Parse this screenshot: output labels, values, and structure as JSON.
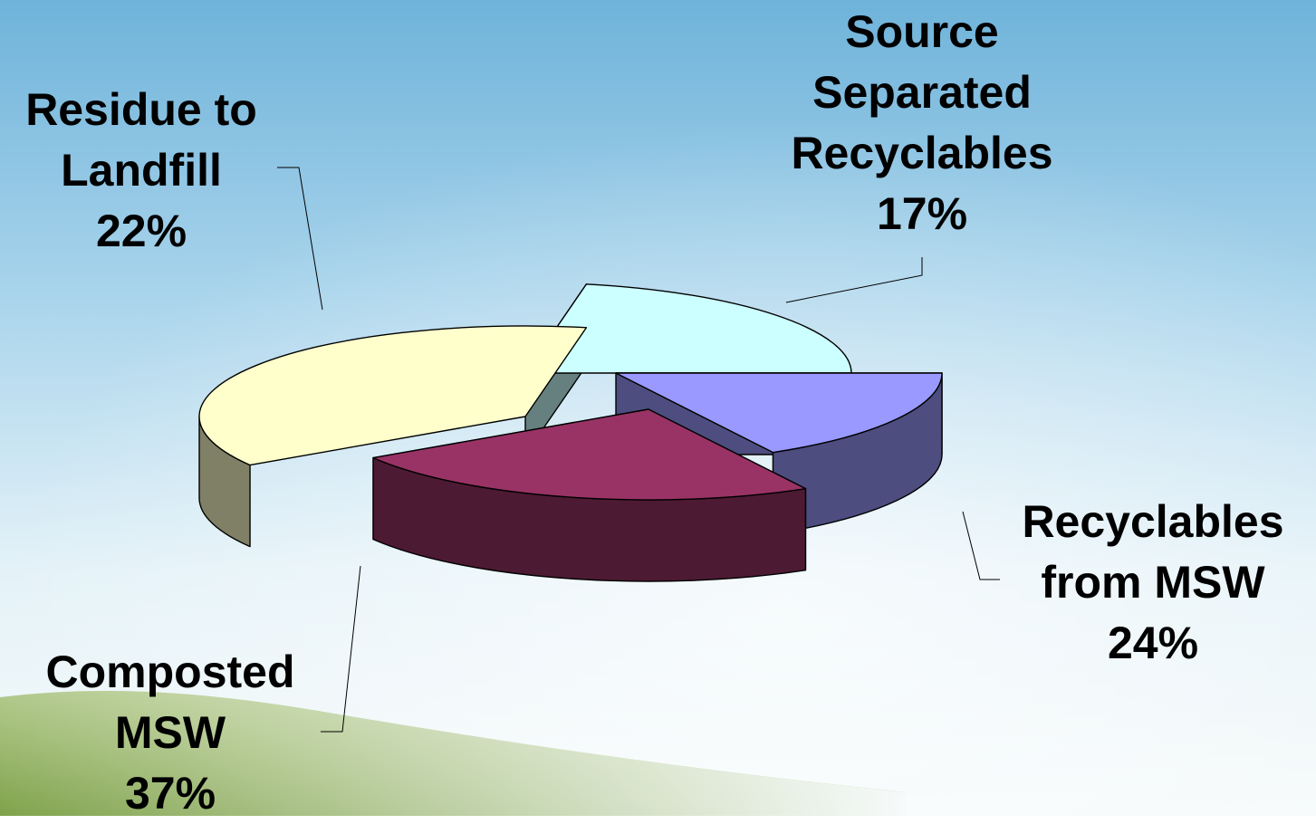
{
  "chart_data": {
    "type": "pie",
    "title": "",
    "style": "3d-exploded",
    "slices": [
      {
        "key": "source",
        "label_lines": [
          "Source",
          "Separated",
          "Recyclables"
        ],
        "percent_label": "17%",
        "value": 17,
        "top_color": "#9999ff",
        "side_color": "#4d4d80"
      },
      {
        "key": "recmsw",
        "label_lines": [
          "Recyclables",
          "from MSW"
        ],
        "percent_label": "24%",
        "value": 24,
        "top_color": "#993366",
        "side_color": "#4d1a33"
      },
      {
        "key": "compost",
        "label_lines": [
          "Composted",
          "MSW"
        ],
        "percent_label": "37%",
        "value": 37,
        "top_color": "#ffffcc",
        "side_color": "#808066"
      },
      {
        "key": "residue",
        "label_lines": [
          "Residue to",
          "Landfill"
        ],
        "percent_label": "22%",
        "value": 22,
        "top_color": "#ccffff",
        "side_color": "#668080"
      }
    ]
  }
}
